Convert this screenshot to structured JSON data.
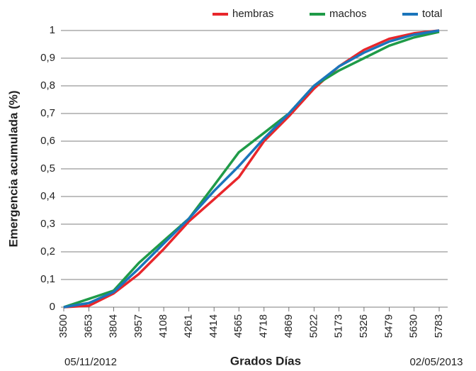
{
  "chart_data": {
    "type": "line",
    "y_label": "Emergencia acumulada (%)",
    "x_label": "Grados Días",
    "annotations": [
      "05/11/2012",
      "02/05/2013"
    ],
    "x": [
      3500,
      3653,
      3804,
      3957,
      4108,
      4261,
      4414,
      4565,
      4718,
      4869,
      5022,
      5173,
      5326,
      5479,
      5630,
      5783
    ],
    "series": [
      {
        "name": "hembras",
        "color": "#e8262b",
        "values": [
          0,
          0.005,
          0.05,
          0.12,
          0.21,
          0.31,
          0.39,
          0.47,
          0.6,
          0.69,
          0.79,
          0.87,
          0.93,
          0.97,
          0.99,
          1.0
        ]
      },
      {
        "name": "machos",
        "color": "#1f9b48",
        "values": [
          0,
          0.03,
          0.06,
          0.16,
          0.24,
          0.32,
          0.44,
          0.56,
          0.63,
          0.7,
          0.8,
          0.855,
          0.9,
          0.945,
          0.975,
          0.995
        ]
      },
      {
        "name": "total",
        "color": "#1b75bb",
        "values": [
          0,
          0.015,
          0.055,
          0.14,
          0.23,
          0.32,
          0.42,
          0.51,
          0.61,
          0.7,
          0.8,
          0.87,
          0.92,
          0.96,
          0.985,
          1.0
        ]
      }
    ],
    "xlim": [
      3500,
      5783
    ],
    "xticks": [
      3500,
      3653,
      3804,
      3957,
      4108,
      4261,
      4414,
      4565,
      4718,
      4869,
      5022,
      5173,
      5326,
      5479,
      5630,
      5783
    ],
    "ylim": [
      0,
      1
    ],
    "yticks": [
      0,
      {
        "value": 0.1,
        "label": "0,1"
      },
      {
        "value": 0.2,
        "label": "0,2"
      },
      {
        "value": 0.3,
        "label": "0,3"
      },
      {
        "value": 0.4,
        "label": "0,4"
      },
      {
        "value": 0.5,
        "label": "0,5"
      },
      {
        "value": 0.6,
        "label": "0,6"
      },
      {
        "value": 0.7,
        "label": "0,7"
      },
      {
        "value": 0.8,
        "label": "0,8"
      },
      {
        "value": 0.9,
        "label": "0,9"
      },
      1
    ],
    "grid": true,
    "legend": "top-right"
  }
}
